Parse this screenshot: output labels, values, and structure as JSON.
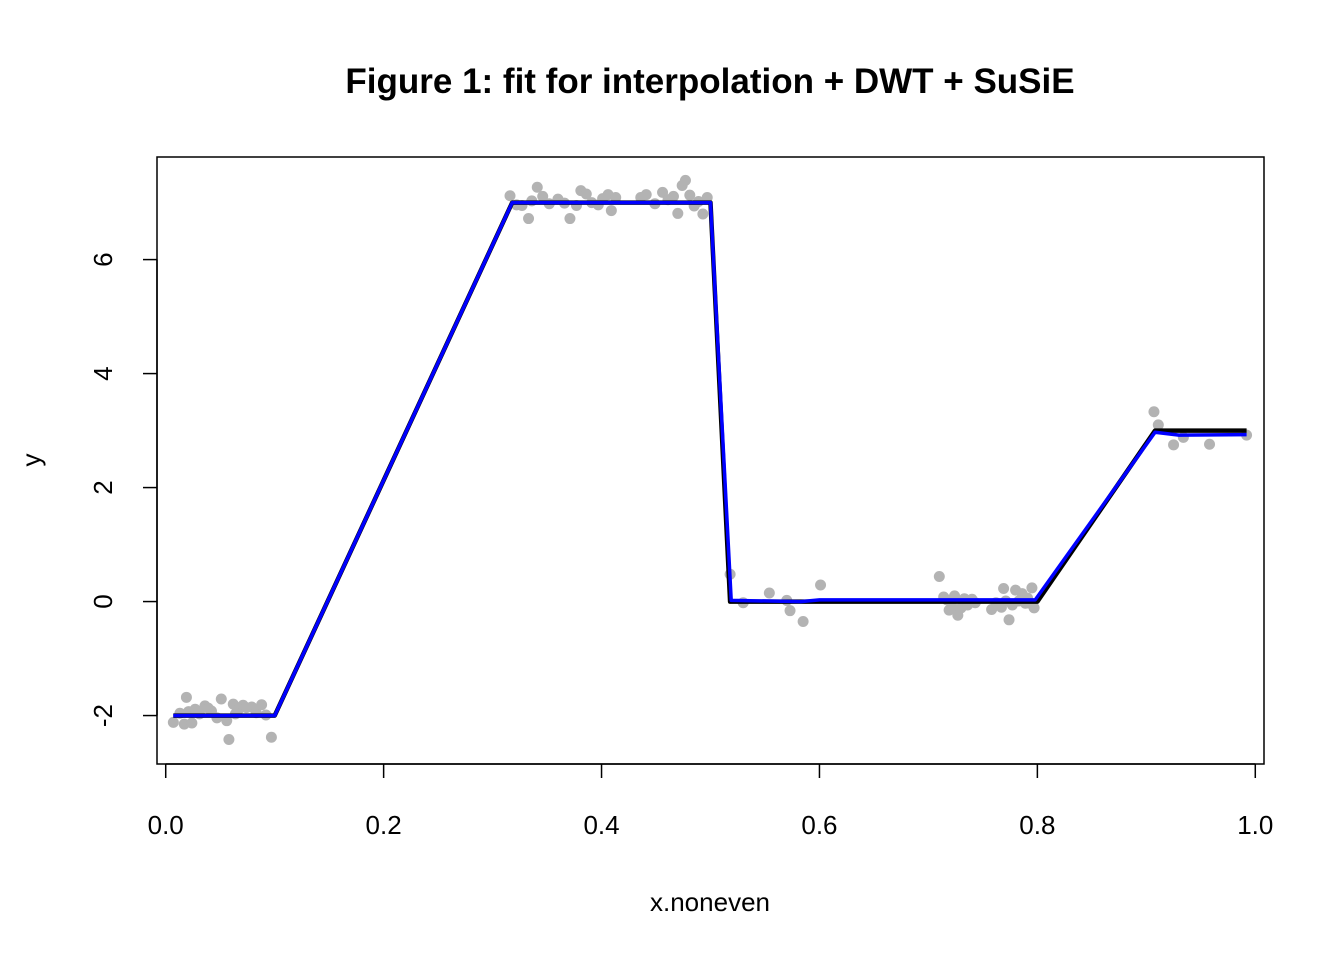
{
  "chart_data": {
    "type": "scatter",
    "title": "Figure 1: fit for interpolation + DWT + SuSiE",
    "xlabel": "x.noneven",
    "ylabel": "y",
    "xlim": [
      -0.008,
      1.008
    ],
    "ylim": [
      -2.85,
      7.8
    ],
    "x_ticks": [
      0.0,
      0.2,
      0.4,
      0.6,
      0.8,
      1.0
    ],
    "x_tick_labels": [
      "0.0",
      "0.2",
      "0.4",
      "0.6",
      "0.8",
      "1.0"
    ],
    "y_ticks": [
      -2,
      0,
      2,
      4,
      6
    ],
    "y_tick_labels": [
      "-2",
      "0",
      "2",
      "4",
      "6"
    ],
    "grid": false,
    "colors": {
      "points": "#b3b3b3",
      "truth": "#000000",
      "fit": "#0000ff"
    },
    "series": [
      {
        "kind": "points",
        "x": [
          0.007,
          0.013,
          0.017,
          0.019,
          0.021,
          0.024,
          0.027,
          0.031,
          0.036,
          0.039,
          0.042,
          0.047,
          0.051,
          0.056,
          0.058,
          0.062,
          0.064,
          0.067,
          0.071,
          0.074,
          0.079,
          0.083,
          0.088,
          0.092,
          0.097,
          0.316,
          0.322,
          0.327,
          0.333,
          0.336,
          0.341,
          0.346,
          0.352,
          0.36,
          0.366,
          0.371,
          0.377,
          0.381,
          0.386,
          0.391,
          0.397,
          0.401,
          0.406,
          0.409,
          0.413,
          0.436,
          0.441,
          0.449,
          0.456,
          0.461,
          0.466,
          0.47,
          0.474,
          0.477,
          0.481,
          0.485,
          0.489,
          0.493,
          0.497,
          0.518,
          0.53,
          0.554,
          0.57,
          0.573,
          0.585,
          0.601,
          0.71,
          0.714,
          0.717,
          0.719,
          0.722,
          0.724,
          0.727,
          0.73,
          0.733,
          0.736,
          0.74,
          0.743,
          0.758,
          0.762,
          0.764,
          0.767,
          0.769,
          0.771,
          0.774,
          0.777,
          0.78,
          0.783,
          0.786,
          0.789,
          0.791,
          0.793,
          0.795,
          0.797,
          0.907,
          0.911,
          0.925,
          0.934,
          0.958,
          0.992
        ],
        "y": [
          -2.12,
          -1.96,
          -2.15,
          -1.68,
          -1.93,
          -2.13,
          -1.89,
          -1.97,
          -1.83,
          -1.87,
          -1.92,
          -2.04,
          -1.71,
          -2.09,
          -2.42,
          -1.8,
          -1.97,
          -1.89,
          -1.82,
          -1.86,
          -1.85,
          -1.95,
          -1.81,
          -1.99,
          -2.38,
          7.12,
          6.96,
          6.95,
          6.72,
          7.03,
          7.27,
          7.11,
          6.98,
          7.06,
          6.99,
          6.72,
          6.95,
          7.21,
          7.15,
          7.0,
          6.96,
          7.07,
          7.14,
          6.86,
          7.09,
          7.09,
          7.14,
          6.98,
          7.18,
          7.05,
          7.11,
          6.81,
          7.3,
          7.39,
          7.13,
          6.94,
          7.02,
          6.8,
          7.09,
          0.48,
          -0.02,
          0.15,
          0.02,
          -0.16,
          -0.35,
          0.29,
          0.44,
          0.08,
          0.03,
          -0.15,
          -0.1,
          0.1,
          -0.24,
          -0.11,
          0.05,
          -0.06,
          0.04,
          -0.02,
          -0.14,
          -0.02,
          -0.06,
          -0.1,
          0.23,
          0.01,
          -0.32,
          -0.06,
          0.2,
          0.01,
          0.14,
          -0.03,
          0.06,
          -0.03,
          0.24,
          -0.11,
          3.33,
          3.1,
          2.75,
          2.88,
          2.76,
          2.92
        ]
      },
      {
        "kind": "truth-line",
        "x": [
          0.007,
          0.1,
          0.318,
          0.5,
          0.518,
          0.6,
          0.8,
          0.908,
          0.992
        ],
        "y": [
          -2.0,
          -2.0,
          7.0,
          7.0,
          0.0,
          0.0,
          0.0,
          3.0,
          3.0
        ]
      },
      {
        "kind": "fit-line",
        "x": [
          0.007,
          0.1,
          0.318,
          0.5,
          0.519,
          0.583,
          0.6,
          0.798,
          0.908,
          0.93,
          0.992
        ],
        "y": [
          -2.0,
          -2.0,
          7.0,
          7.0,
          0.02,
          0.0,
          0.03,
          0.03,
          2.97,
          2.92,
          2.93
        ]
      }
    ]
  }
}
